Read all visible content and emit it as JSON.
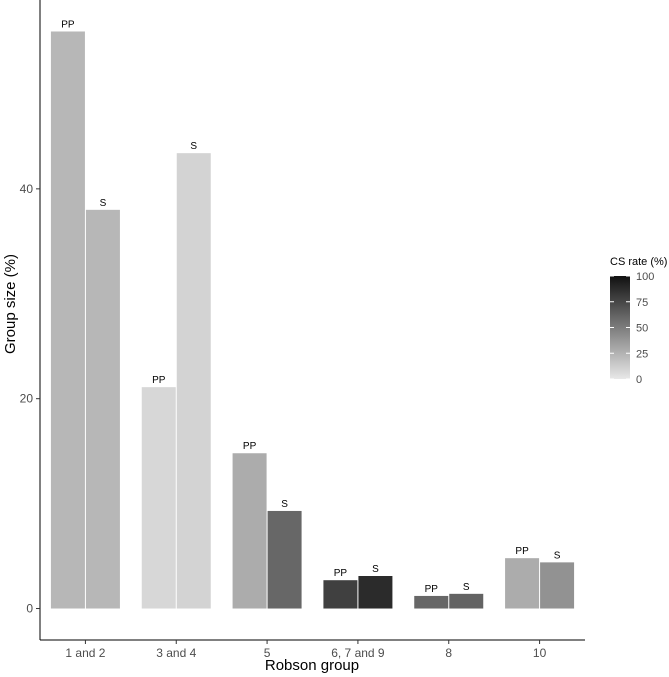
{
  "chart_data": {
    "type": "bar",
    "xlabel": "Robson group",
    "ylabel": "Group size (%)",
    "categories": [
      "1 and 2",
      "3 and 4",
      "5",
      "6, 7 and 9",
      "8",
      "10"
    ],
    "ylim": [
      -3,
      58
    ],
    "yticks": [
      0,
      20,
      40
    ],
    "grid": false,
    "series": [
      {
        "bar_label": "PP",
        "values": [
          55.0,
          21.1,
          14.8,
          2.7,
          1.2,
          4.8
        ],
        "cs_rate": [
          23,
          8,
          28,
          78,
          60,
          28
        ]
      },
      {
        "bar_label": "S",
        "values": [
          38.0,
          43.4,
          9.3,
          3.1,
          1.4,
          4.4
        ],
        "cs_rate": [
          23,
          10,
          60,
          88,
          62,
          40
        ]
      }
    ],
    "legend": {
      "title": "CS rate (%)",
      "position": "right",
      "ticks": [
        0,
        25,
        50,
        75,
        100
      ],
      "color_low": "#e8e8e8",
      "color_high": "#111111"
    }
  }
}
